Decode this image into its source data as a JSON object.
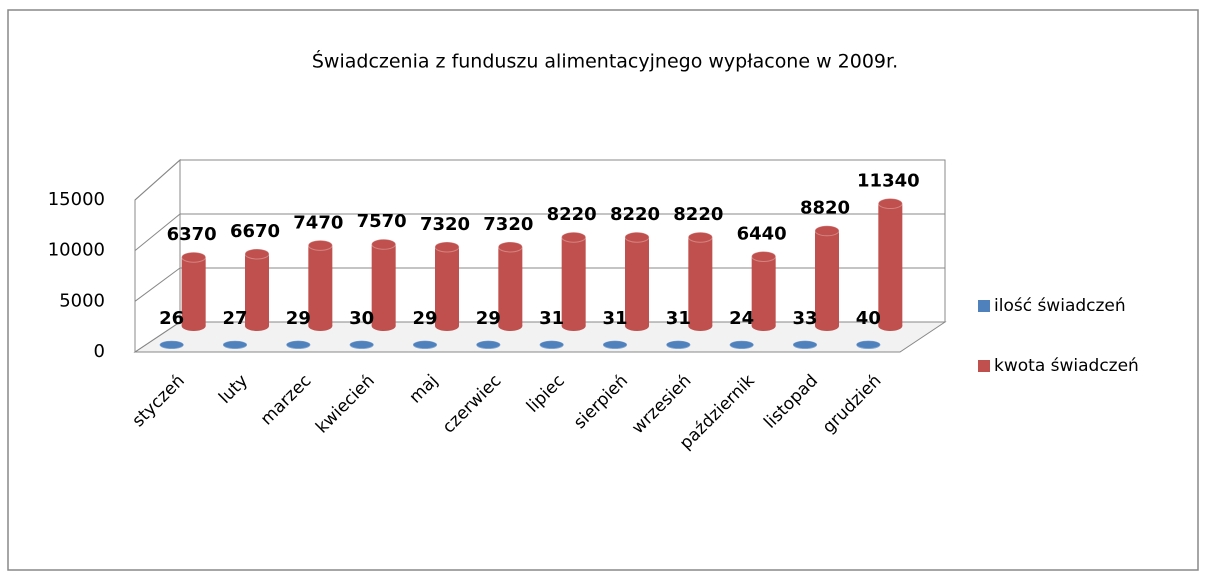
{
  "chart_data": {
    "type": "bar3d",
    "title": "Świadczenia z funduszu alimentacyjnego wypłacone w 2009r.",
    "categories": [
      "styczeń",
      "luty",
      "marzec",
      "kwiecień",
      "maj",
      "czerwiec",
      "lipiec",
      "sierpień",
      "wrzesień",
      "październik",
      "listopad",
      "grudzień"
    ],
    "series": [
      {
        "name": "ilość świadczeń",
        "color": "#4f81bd",
        "values": [
          26,
          27,
          29,
          30,
          29,
          29,
          31,
          31,
          31,
          24,
          33,
          40
        ]
      },
      {
        "name": "kwota świadczeń",
        "color": "#c0504d",
        "values": [
          6370,
          6670,
          7470,
          7570,
          7320,
          7320,
          8220,
          8220,
          8220,
          6440,
          8820,
          11340
        ]
      }
    ],
    "ylim": [
      0,
      15000
    ],
    "yticks": [
      0,
      5000,
      10000,
      15000
    ],
    "grid": true,
    "legend": "right"
  }
}
